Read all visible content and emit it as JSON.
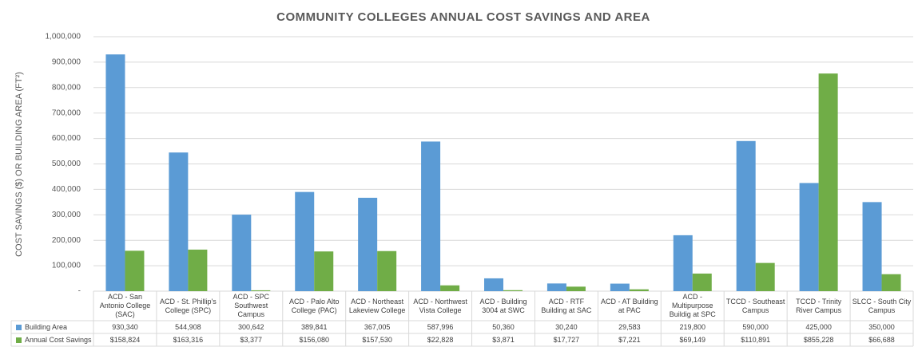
{
  "chart_data": {
    "type": "bar",
    "title": "COMMUNITY COLLEGES ANNUAL COST SAVINGS AND AREA",
    "y_label": "COST SAVINGS ($) OR BUILDING AREA (FT²)",
    "categories": [
      "ACD - San Antonio College (SAC)",
      "ACD - St. Phillip's College (SPC)",
      "ACD - SPC Southwest Campus",
      "ACD - Palo Alto College (PAC)",
      "ACD - Northeast Lakeview College",
      "ACD - Northwest Vista College",
      "ACD - Building 3004 at SWC",
      "ACD - RTF Building at SAC",
      "ACD - AT Building at PAC",
      "ACD - Multipurpose Buildig at SPC",
      "TCCD - Southeast Campus",
      "TCCD - Trinity River Campus",
      "SLCC - South City Campus"
    ],
    "series": [
      {
        "name": "Building Area",
        "color": "#5b9bd5",
        "values": [
          930340,
          544908,
          300642,
          389841,
          367005,
          587996,
          50360,
          30240,
          29583,
          219800,
          590000,
          425000,
          350000
        ],
        "value_labels": [
          "930,340",
          "544,908",
          "300,642",
          "389,841",
          "367,005",
          "587,996",
          "50,360",
          "30,240",
          "29,583",
          "219,800",
          "590,000",
          "425,000",
          "350,000"
        ]
      },
      {
        "name": "Annual Cost Savings",
        "color": "#70ad47",
        "values": [
          158824,
          163316,
          3377,
          156080,
          157530,
          22828,
          3871,
          17727,
          7221,
          69149,
          110891,
          855228,
          66688
        ],
        "value_labels": [
          "$158,824",
          "$163,316",
          "$3,377",
          "$156,080",
          "$157,530",
          "$22,828",
          "$3,871",
          "$17,727",
          "$7,221",
          "$69,149",
          "$110,891",
          "$855,228",
          "$66,688"
        ]
      }
    ],
    "ylim": [
      0,
      1000000
    ],
    "yticks": [
      {
        "value": 0,
        "label": "-"
      },
      {
        "value": 100000,
        "label": "100,000"
      },
      {
        "value": 200000,
        "label": "200,000"
      },
      {
        "value": 300000,
        "label": "300,000"
      },
      {
        "value": 400000,
        "label": "400,000"
      },
      {
        "value": 500000,
        "label": "500,000"
      },
      {
        "value": 600000,
        "label": "600,000"
      },
      {
        "value": 700000,
        "label": "700,000"
      },
      {
        "value": 800000,
        "label": "800,000"
      },
      {
        "value": 900000,
        "label": "900,000"
      },
      {
        "value": 1000000,
        "label": "1,000,000"
      }
    ],
    "grid": true
  }
}
